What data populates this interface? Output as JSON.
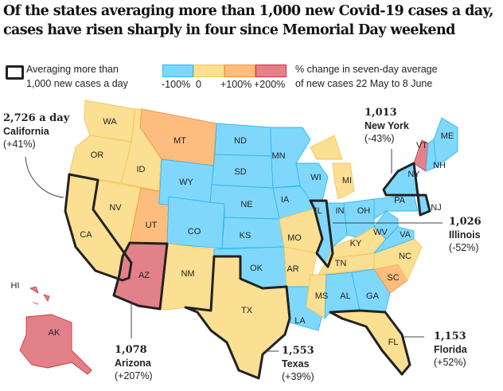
{
  "title": "Of the states averaging more than 1,000 new Covid-19 cases a day, cases have risen sharply in four since Memorial Day weekend",
  "legend": {
    "box_label_line1": "Averaging more than",
    "box_label_line2": "1,000 new cases a day",
    "scale_labels": [
      "-100%",
      "0",
      "+100%",
      "+200%"
    ],
    "scale_title_line1": "% change in seven-day average",
    "scale_title_line2": "of new cases 22 May to 8 June",
    "colors": {
      "decrease": "#7fd8fb",
      "increase_0_100": "#fbdf92",
      "increase_100_200": "#fdbd7e",
      "increase_200_plus": "#e3818a"
    }
  },
  "stroke_colors": {
    "decrease": "#2fb8f0",
    "increase_0_100": "#f3c558",
    "increase_100_200": "#f5963c",
    "increase_200_plus": "#d2343f",
    "highlight": "#222222"
  },
  "states": [
    {
      "abbr": "WA",
      "cat": "increase_0_100"
    },
    {
      "abbr": "OR",
      "cat": "increase_0_100"
    },
    {
      "abbr": "CA",
      "cat": "increase_0_100",
      "hl": true
    },
    {
      "abbr": "ID",
      "cat": "increase_0_100"
    },
    {
      "abbr": "NV",
      "cat": "increase_0_100"
    },
    {
      "abbr": "MT",
      "cat": "increase_100_200"
    },
    {
      "abbr": "UT",
      "cat": "increase_100_200"
    },
    {
      "abbr": "AZ",
      "cat": "increase_200_plus",
      "hl": true
    },
    {
      "abbr": "WY",
      "cat": "decrease"
    },
    {
      "abbr": "CO",
      "cat": "decrease"
    },
    {
      "abbr": "NM",
      "cat": "increase_0_100"
    },
    {
      "abbr": "ND",
      "cat": "decrease"
    },
    {
      "abbr": "SD",
      "cat": "decrease"
    },
    {
      "abbr": "NE",
      "cat": "decrease"
    },
    {
      "abbr": "KS",
      "cat": "decrease"
    },
    {
      "abbr": "OK",
      "cat": "decrease"
    },
    {
      "abbr": "TX",
      "cat": "increase_0_100",
      "hl": true
    },
    {
      "abbr": "MN",
      "cat": "decrease"
    },
    {
      "abbr": "IA",
      "cat": "decrease"
    },
    {
      "abbr": "MO",
      "cat": "increase_0_100"
    },
    {
      "abbr": "AR",
      "cat": "increase_0_100"
    },
    {
      "abbr": "LA",
      "cat": "decrease"
    },
    {
      "abbr": "WI",
      "cat": "decrease"
    },
    {
      "abbr": "IL",
      "cat": "decrease",
      "hl": true
    },
    {
      "abbr": "MI",
      "cat": "increase_0_100"
    },
    {
      "abbr": "IN",
      "cat": "decrease"
    },
    {
      "abbr": "OH",
      "cat": "decrease"
    },
    {
      "abbr": "KY",
      "cat": "increase_0_100"
    },
    {
      "abbr": "TN",
      "cat": "increase_0_100"
    },
    {
      "abbr": "MS",
      "cat": "increase_0_100"
    },
    {
      "abbr": "AL",
      "cat": "decrease"
    },
    {
      "abbr": "GA",
      "cat": "decrease"
    },
    {
      "abbr": "FL",
      "cat": "increase_0_100",
      "hl": true
    },
    {
      "abbr": "SC",
      "cat": "increase_100_200"
    },
    {
      "abbr": "NC",
      "cat": "increase_0_100"
    },
    {
      "abbr": "VA",
      "cat": "decrease"
    },
    {
      "abbr": "WV",
      "cat": "decrease"
    },
    {
      "abbr": "PA",
      "cat": "decrease"
    },
    {
      "abbr": "NY",
      "cat": "decrease",
      "hl": true
    },
    {
      "abbr": "NJ",
      "cat": "decrease",
      "hl": true
    },
    {
      "abbr": "VT",
      "cat": "increase_200_plus"
    },
    {
      "abbr": "NH",
      "cat": "decrease"
    },
    {
      "abbr": "ME",
      "cat": "decrease"
    },
    {
      "abbr": "HI",
      "cat": "increase_200_plus"
    },
    {
      "abbr": "AK",
      "cat": "increase_200_plus"
    }
  ],
  "annotations": {
    "california": {
      "value": "2,726 a day",
      "name": "California",
      "change": "(+41%)"
    },
    "new_york": {
      "value": "1,013",
      "name": "New York",
      "change": "(-43%)"
    },
    "illinois": {
      "value": "1,026",
      "name": "Illinois",
      "change": "(-52%)"
    },
    "arizona": {
      "value": "1,078",
      "name": "Arizona",
      "change": "(+207%)"
    },
    "texas": {
      "value": "1,553",
      "name": "Texas",
      "change": "(+39%)"
    },
    "florida": {
      "value": "1,153",
      "name": "Florida",
      "change": "(+52%)"
    }
  }
}
